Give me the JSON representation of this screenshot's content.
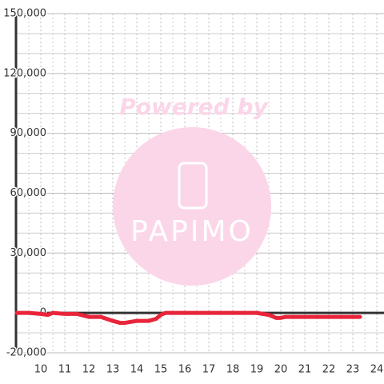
{
  "chart_data": {
    "type": "line",
    "watermark": {
      "top": "Powered by",
      "bottom": "PAPIMO"
    },
    "x": [
      9,
      9.5,
      10,
      10.3,
      10.5,
      11,
      11.5,
      12,
      12.5,
      13,
      13.3,
      13.5,
      14,
      14.5,
      14.8,
      15,
      15.2,
      16,
      16.5,
      17,
      18,
      19,
      19.5,
      19.8,
      20,
      20.2,
      21,
      22,
      23.3
    ],
    "series": [
      {
        "color": "#e8253a",
        "values": [
          0,
          0,
          -500,
          -1000,
          0,
          -500,
          -500,
          -2000,
          -2000,
          -4000,
          -5000,
          -5000,
          -4000,
          -4000,
          -3000,
          -1000,
          0,
          0,
          0,
          0,
          0,
          0,
          -1000,
          -2500,
          -2500,
          -2000,
          -2000,
          -2000,
          -2000
        ]
      }
    ],
    "xlim": [
      9,
      24.3
    ],
    "xticks": [
      10,
      11,
      12,
      13,
      14,
      15,
      16,
      17,
      18,
      19,
      20,
      21,
      22,
      23,
      24
    ],
    "x_minor_ticks": [
      9.5,
      10.5,
      11.5,
      12.5,
      13.5,
      14.5,
      15.5,
      16.5,
      17.5,
      18.5,
      19.5,
      20.5,
      21.5,
      22.5,
      23.5
    ],
    "ylim": [
      -20000,
      150000
    ],
    "yticks": [
      {
        "value": -20000,
        "label": "-20,000"
      },
      0,
      {
        "value": 30000,
        "label": "30,000"
      },
      {
        "value": 60000,
        "label": "60,000"
      },
      {
        "value": 90000,
        "label": "90,000"
      },
      {
        "value": 120000,
        "label": "120,000"
      },
      {
        "value": 150000,
        "label": "150,000"
      }
    ],
    "y_minor_ticks": [
      -10000,
      10000,
      20000,
      40000,
      50000,
      70000,
      80000,
      100000,
      110000,
      130000,
      140000
    ],
    "grid": true
  }
}
